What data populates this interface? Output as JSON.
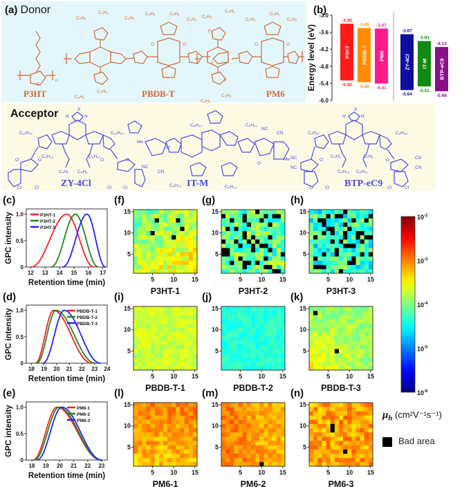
{
  "panels": {
    "a": {
      "label": "(a)",
      "title": "Donor"
    },
    "acceptor": {
      "title": "Acceptor"
    },
    "b": {
      "label": "(b)"
    },
    "c": {
      "label": "(c)"
    },
    "d": {
      "label": "(d)"
    },
    "e": {
      "label": "(e)"
    },
    "f": {
      "label": "(f)"
    },
    "g": {
      "label": "(g)"
    },
    "h": {
      "label": "(h)"
    },
    "i": {
      "label": "(i)"
    },
    "j": {
      "label": "(j)"
    },
    "k": {
      "label": "(k)"
    },
    "l": {
      "label": "(l)"
    },
    "m": {
      "label": "(m)"
    },
    "n": {
      "label": "(n)"
    }
  },
  "donors": {
    "names": [
      "P3HT",
      "PBDB-T",
      "PM6"
    ],
    "substituents": [
      "C2H5",
      "C4H9",
      "F",
      "O",
      "S",
      "n"
    ]
  },
  "acceptors": {
    "names": [
      "ZY-4Cl",
      "IT-M",
      "BTP-eC9"
    ],
    "substituents": [
      "C11H23",
      "C6H13",
      "C4H9",
      "C9H19",
      "Cl",
      "NC",
      "CN",
      "Me",
      "O",
      "N",
      "S"
    ]
  },
  "colors": {
    "donor": "#d2692f",
    "acceptor": "#4a4ae6",
    "donor_bg": "#e3f6fb",
    "acceptor_bg": "#fcfae4",
    "bad_area": "#000000"
  },
  "chart_data": [
    {
      "id": "b",
      "type": "bar",
      "title": "",
      "ylabel": "Energy level (eV)",
      "ylim": [
        -6.0,
        -3.0
      ],
      "yticks": [
        "-3.0",
        "-3.6",
        "-4.2",
        "-4.8",
        "-5.4",
        "-6.0"
      ],
      "ytick_values": [
        -3.0,
        -3.6,
        -4.2,
        -4.8,
        -5.4,
        -6.0
      ],
      "bars": [
        {
          "name": "P3HT",
          "lumo": -3.3,
          "homo": -5.3,
          "lumo_label": "-3.30",
          "homo_label": "-5.30",
          "color": "#ff1a1a",
          "group": "donor"
        },
        {
          "name": "PBDB-T",
          "lumo": -3.45,
          "homo": -5.36,
          "lumo_label": "-3.45",
          "homo_label": "-5.36",
          "color": "#ff8c00",
          "group": "donor"
        },
        {
          "name": "PM6",
          "lumo": -3.47,
          "homo": -5.41,
          "lumo_label": "-3.47",
          "homo_label": "-5.41",
          "color": "#ff1a8c",
          "group": "donor"
        },
        {
          "name": "ZY-4Cl",
          "lumo": -3.67,
          "homo": -5.64,
          "lumo_label": "-3.67",
          "homo_label": "-5.64",
          "color": "#0d0d9e",
          "group": "acceptor"
        },
        {
          "name": "IT-M",
          "lumo": -3.91,
          "homo": -5.51,
          "lumo_label": "-3.91",
          "homo_label": "-5.51",
          "color": "#118a11",
          "group": "acceptor"
        },
        {
          "name": "BTP-eC9",
          "lumo": -4.12,
          "homo": -5.68,
          "lumo_label": "-4.12",
          "homo_label": "-5.68",
          "color": "#8a0f8a",
          "group": "acceptor"
        }
      ],
      "divider_between": [
        "PM6",
        "ZY-4Cl"
      ]
    },
    {
      "id": "c",
      "type": "line",
      "xlabel": "Retention time (min)",
      "ylabel": "GPC intensity",
      "xlim": [
        11.7,
        17.3
      ],
      "ylim": [
        0,
        1.1
      ],
      "xticks": [
        "12",
        "13",
        "14",
        "15",
        "16",
        "17"
      ],
      "xtick_values": [
        12,
        13,
        14,
        15,
        16,
        17
      ],
      "yticks": [
        "0",
        "0.5",
        "1.0"
      ],
      "ytick_values": [
        0,
        0.5,
        1.0
      ],
      "legend": "top-left",
      "series": [
        {
          "name": "P3HT-1",
          "color": "#ff2020",
          "start": 12.0,
          "peak": 14.5,
          "end": 16.4
        },
        {
          "name": "P3HT-2",
          "color": "#1a8a1a",
          "start": 13.4,
          "peak": 15.1,
          "end": 16.7
        },
        {
          "name": "P3HT-3",
          "color": "#2020ff",
          "start": 14.2,
          "peak": 15.9,
          "end": 17.2
        }
      ]
    },
    {
      "id": "d",
      "type": "line",
      "xlabel": "Retention time (min)",
      "ylabel": "GPC intensity",
      "xlim": [
        17.6,
        24.0
      ],
      "ylim": [
        0,
        1.1
      ],
      "xticks": [
        "18",
        "19",
        "20",
        "21",
        "22",
        "23",
        "24"
      ],
      "xtick_values": [
        18,
        19,
        20,
        21,
        22,
        23,
        24
      ],
      "yticks": [
        "0",
        "0.5",
        "1.0"
      ],
      "ytick_values": [
        0,
        0.5,
        1.0
      ],
      "legend": "top-right",
      "series": [
        {
          "name": "PBDB-T-1",
          "color": "#ff2020",
          "start": 18.3,
          "peak": 19.75,
          "end": 22.8
        },
        {
          "name": "PBDB-T-2",
          "color": "#1a8a1a",
          "start": 18.4,
          "peak": 19.95,
          "end": 23.1
        },
        {
          "name": "PBDB-T-3",
          "color": "#2020ff",
          "start": 18.9,
          "peak": 20.6,
          "end": 23.5
        }
      ]
    },
    {
      "id": "e",
      "type": "line",
      "xlabel": "Retention time (min)",
      "ylabel": "GPC intensity",
      "xlim": [
        17.6,
        23.4
      ],
      "ylim": [
        0,
        1.1
      ],
      "xticks": [
        "18",
        "19",
        "20",
        "21",
        "22",
        "23"
      ],
      "xtick_values": [
        18,
        19,
        20,
        21,
        22,
        23
      ],
      "yticks": [
        "0",
        "0.5",
        "1.0"
      ],
      "ytick_values": [
        0,
        0.5,
        1.0
      ],
      "legend": "top-right",
      "series": [
        {
          "name": "PM6-1",
          "color": "#ff2020",
          "start": 18.05,
          "peak": 19.8,
          "end": 23.0
        },
        {
          "name": "PM6-2",
          "color": "#1a8a1a",
          "start": 18.15,
          "peak": 19.95,
          "end": 23.0
        },
        {
          "name": "PM6-3",
          "color": "#2020ff",
          "start": 18.35,
          "peak": 20.15,
          "end": 23.05
        }
      ]
    },
    {
      "id": "heatmaps",
      "type": "heatmap",
      "grid_size": 15,
      "xticks": [
        "5",
        "10",
        "15"
      ],
      "yticks": [
        "5",
        "10",
        "15"
      ],
      "colorbar": {
        "label": "μh (cm²V⁻¹s⁻¹)",
        "label_symbol": "μ",
        "label_sub": "h",
        "label_units": " (cm²V⁻¹s⁻¹)",
        "range_log10": [
          -6,
          -2
        ],
        "ticks": [
          {
            "base": "10",
            "exp": "-2"
          },
          {
            "base": "10",
            "exp": "-3"
          },
          {
            "base": "10",
            "exp": "-4"
          },
          {
            "base": "10",
            "exp": "-5"
          },
          {
            "base": "10",
            "exp": "-6"
          }
        ],
        "colormap": "jet"
      },
      "bad_area_label": "Bad area",
      "maps": [
        {
          "panel": "f",
          "title": "P3HT-1",
          "mean_log10": -3.75,
          "spread": 0.35,
          "bad_fraction": 0.0,
          "bad_cells": [
            [
              6,
              13
            ],
            [
              11,
              13
            ],
            [
              12,
              11
            ],
            [
              5,
              10
            ],
            [
              10,
              9
            ]
          ],
          "gradient": "warm-bottom-right",
          "seed": 11
        },
        {
          "panel": "g",
          "title": "P3HT-2",
          "mean_log10": -4.1,
          "spread": 0.5,
          "bad_fraction": 0.22,
          "bad_cells": [],
          "gradient": "none",
          "seed": 23
        },
        {
          "panel": "h",
          "title": "P3HT-3",
          "mean_log10": -4.3,
          "spread": 0.5,
          "bad_fraction": 0.2,
          "bad_cells": [],
          "gradient": "none",
          "seed": 37
        },
        {
          "panel": "i",
          "title": "PBDB-T-1",
          "mean_log10": -3.7,
          "spread": 0.18,
          "bad_fraction": 0.0,
          "bad_cells": [],
          "gradient": "none",
          "seed": 41
        },
        {
          "panel": "j",
          "title": "PBDB-T-2",
          "mean_log10": -4.35,
          "spread": 0.15,
          "bad_fraction": 0.0,
          "bad_cells": [],
          "gradient": "none",
          "seed": 53
        },
        {
          "panel": "k",
          "title": "PBDB-T-3",
          "mean_log10": -3.8,
          "spread": 0.22,
          "bad_fraction": 0.0,
          "bad_cells": [
            [
              2,
              14
            ],
            [
              7,
              5
            ]
          ],
          "gradient": "warm-bottom-left",
          "seed": 67
        },
        {
          "panel": "l",
          "title": "PM6-1",
          "mean_log10": -3.15,
          "spread": 0.22,
          "bad_fraction": 0.0,
          "bad_cells": [],
          "gradient": "warm-top",
          "seed": 71
        },
        {
          "panel": "m",
          "title": "PM6-2",
          "mean_log10": -3.1,
          "spread": 0.2,
          "bad_fraction": 0.0,
          "bad_cells": [
            [
              10,
              1
            ]
          ],
          "gradient": "warm-left",
          "seed": 83
        },
        {
          "panel": "n",
          "title": "PM6-3",
          "mean_log10": -3.15,
          "spread": 0.3,
          "bad_fraction": 0.0,
          "bad_cells": [
            [
              6,
              9
            ],
            [
              6,
              10
            ],
            [
              9,
              4
            ]
          ],
          "gradient": "none",
          "seed": 97
        }
      ]
    }
  ]
}
